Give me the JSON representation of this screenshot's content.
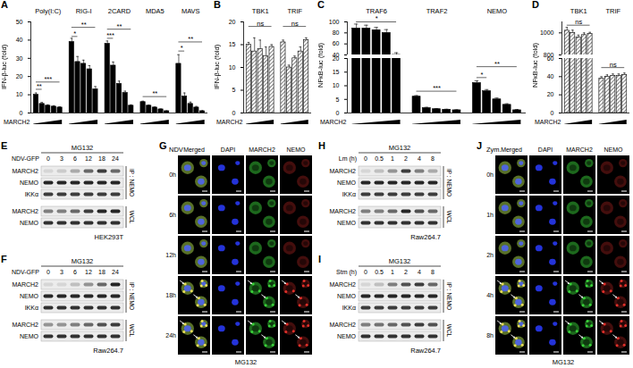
{
  "chart_data": [
    {
      "panel": "A",
      "type": "bar",
      "y_label": "IFN-β-luc (fold)",
      "x_label": "MARCH2",
      "categories": [
        "Poly(I:C)",
        "RIG-I",
        "2CARD",
        "MDA5",
        "MAVS"
      ],
      "values": [
        [
          10,
          5,
          4,
          3.5,
          3
        ],
        [
          39,
          28,
          27,
          24,
          13
        ],
        [
          38,
          26,
          16,
          11,
          4
        ],
        [
          6,
          4,
          3,
          2,
          1
        ],
        [
          27,
          9,
          5,
          3,
          1
        ]
      ],
      "errors": [
        [
          1,
          0.8,
          0.5,
          0.5,
          0.4
        ],
        [
          2,
          3,
          2,
          2,
          1.5
        ],
        [
          1.5,
          2,
          1.5,
          1,
          0.5
        ],
        [
          0.5,
          0.4,
          0.3,
          0.2,
          0.2
        ],
        [
          5,
          2,
          1,
          0.6,
          0.3
        ]
      ],
      "ylim": [
        0,
        50
      ],
      "yticks": [
        0,
        10,
        20,
        30,
        40,
        50
      ],
      "color": "#000000",
      "annotations": [
        {
          "category": "Poly(I:C)",
          "from": 0,
          "to": 1,
          "y": 13,
          "text": "**"
        },
        {
          "category": "Poly(I:C)",
          "from": 0,
          "to": 4,
          "y": 17,
          "text": "***"
        },
        {
          "category": "RIG-I",
          "from": 0,
          "to": 1,
          "y": 42,
          "text": "*"
        },
        {
          "category": "RIG-I",
          "from": 0,
          "to": 4,
          "y": 47,
          "text": "**"
        },
        {
          "category": "2CARD",
          "from": 0,
          "to": 1,
          "y": 41,
          "text": "***"
        },
        {
          "category": "2CARD",
          "from": 0,
          "to": 4,
          "y": 46,
          "text": "**"
        },
        {
          "category": "MDA5",
          "from": 0,
          "to": 4,
          "y": 9,
          "text": "**"
        },
        {
          "category": "MAVS",
          "from": 0,
          "to": 1,
          "y": 34,
          "text": "*"
        },
        {
          "category": "MAVS",
          "from": 0,
          "to": 4,
          "y": 39,
          "text": "**"
        }
      ]
    },
    {
      "panel": "B",
      "type": "bar",
      "y_label": "IFN-β-luc (fold)",
      "x_label": "MARCH2",
      "categories": [
        "TBK1",
        "TRIF"
      ],
      "values": [
        [
          15,
          13.5,
          14,
          12.5,
          14.5
        ],
        [
          15.5,
          10,
          12,
          13.5,
          16
        ]
      ],
      "errors": [
        [
          0.5,
          3,
          2,
          2,
          0.5
        ],
        [
          0.5,
          0.5,
          0.5,
          1,
          0.5
        ]
      ],
      "ylim": [
        0,
        20
      ],
      "yticks": [
        0,
        5,
        10,
        15,
        20
      ],
      "color": "#000000",
      "line_style": "hatched",
      "annotations": [
        {
          "category": "TBK1",
          "from": 0,
          "to": 4,
          "y": 19,
          "text": "ns"
        },
        {
          "category": "TRIF",
          "from": 0,
          "to": 4,
          "y": 19,
          "text": "ns"
        }
      ]
    },
    {
      "panel": "C",
      "type": "bar",
      "y_label": "NFκB-luc (fold)",
      "x_label": "MARCH2",
      "categories": [
        "TRAF6",
        "TRAF2",
        "NEMO"
      ],
      "values": [
        [
          88,
          88,
          85,
          80,
          40
        ],
        [
          6,
          1.8,
          1.4,
          1.2,
          1
        ],
        [
          11,
          8,
          5,
          3,
          1
        ]
      ],
      "errors": [
        [
          8,
          6,
          5,
          6,
          4
        ],
        [
          0.4,
          0.3,
          0.2,
          0.2,
          0.2
        ],
        [
          0.8,
          0.6,
          0.5,
          0.4,
          0.3
        ]
      ],
      "segments": [
        {
          "ylim": [
            0,
            20
          ],
          "yticks": [
            0,
            5,
            10,
            15,
            20
          ]
        },
        {
          "ylim": [
            40,
            100
          ],
          "yticks": [
            40,
            60,
            80,
            100
          ]
        }
      ],
      "color": "#000000",
      "annotations": [
        {
          "category": "TRAF6",
          "from": 0,
          "to": 4,
          "y": 100,
          "text": "*"
        },
        {
          "category": "TRAF2",
          "from": 0,
          "to": 4,
          "y": 8,
          "text": "***"
        },
        {
          "category": "NEMO",
          "from": 0,
          "to": 1,
          "y": 13,
          "text": "*"
        },
        {
          "category": "NEMO",
          "from": 0,
          "to": 4,
          "y": 17,
          "text": "**"
        }
      ]
    },
    {
      "panel": "D",
      "type": "bar",
      "y_label": "NFκB-luc (fold)",
      "x_label": "MARCH2",
      "categories": [
        "TBK1",
        "TRIF"
      ],
      "values": [
        [
          1020,
          1000,
          960,
          980,
          990
        ],
        [
          38,
          40,
          41,
          41,
          42
        ]
      ],
      "errors": [
        [
          30,
          25,
          20,
          20,
          15
        ],
        [
          2,
          2,
          2,
          2,
          2
        ]
      ],
      "segments": [
        {
          "ylim": [
            0,
            60
          ],
          "yticks": [
            0,
            20,
            40,
            60
          ]
        },
        {
          "ylim": [
            800,
            1100
          ],
          "yticks": [
            800,
            1000
          ]
        }
      ],
      "color": "#000000",
      "line_style": "hatched",
      "annotations": [
        {
          "category": "TBK1",
          "from": 0,
          "to": 4,
          "y": 1070,
          "text": "ns"
        },
        {
          "category": "TRIF",
          "from": 0,
          "to": 4,
          "y": 50,
          "text": "ns"
        }
      ]
    }
  ],
  "blots": [
    {
      "panel": "E",
      "drug": "MG132",
      "treatment": "NDV-GFP",
      "lanes": [
        "0",
        "3",
        "6",
        "12",
        "18",
        "24"
      ],
      "blocks": [
        {
          "label": "IP : NEMO",
          "rows": [
            {
              "label": "MARCH2",
              "bands": [
                0.1,
                0.15,
                0.3,
                0.6,
                0.8,
                0.6
              ]
            },
            {
              "label": "NEMO",
              "bands": [
                0.9,
                0.9,
                0.9,
                0.9,
                0.9,
                0.9
              ]
            },
            {
              "label": "IKKα",
              "bands": [
                0.8,
                0.8,
                0.8,
                0.8,
                0.8,
                0.8
              ]
            }
          ]
        },
        {
          "label": "WCL",
          "rows": [
            {
              "label": "MARCH2",
              "bands": [
                0.5,
                0.5,
                0.6,
                0.8,
                0.9,
                0.9
              ]
            },
            {
              "label": "NEMO",
              "bands": [
                0.85,
                0.85,
                0.85,
                0.85,
                0.85,
                0.85
              ]
            }
          ]
        }
      ],
      "cell_line": "HEK293T"
    },
    {
      "panel": "F",
      "drug": "MG132",
      "treatment": "NDV-GFP",
      "lanes": [
        "0",
        "3",
        "6",
        "12",
        "18",
        "24"
      ],
      "blocks": [
        {
          "label": "IP : NEMO",
          "rows": [
            {
              "label": "MARCH2",
              "bands": [
                0.1,
                0.1,
                0.2,
                0.4,
                0.6,
                0.9
              ]
            },
            {
              "label": "NEMO",
              "bands": [
                0.9,
                0.9,
                0.9,
                0.9,
                0.9,
                0.9
              ]
            },
            {
              "label": "IKKα",
              "bands": [
                0.85,
                0.85,
                0.85,
                0.85,
                0.85,
                0.85
              ]
            }
          ]
        },
        {
          "label": "WCL",
          "rows": [
            {
              "label": "MARCH2",
              "bands": [
                0.4,
                0.4,
                0.5,
                0.6,
                0.7,
                0.8
              ]
            },
            {
              "label": "NEMO",
              "bands": [
                0.85,
                0.85,
                0.85,
                0.85,
                0.85,
                0.85
              ]
            }
          ]
        }
      ],
      "cell_line": "Raw264.7"
    },
    {
      "panel": "H",
      "drug": "MG132",
      "treatment": "Lm (h)",
      "lanes": [
        "0",
        "0.5",
        "1",
        "2",
        "4",
        "8"
      ],
      "blocks": [
        {
          "label": "IP : NEMO",
          "rows": [
            {
              "label": "MARCH2",
              "bands": [
                0.1,
                0.2,
                0.4,
                0.8,
                0.5,
                0.3
              ]
            },
            {
              "label": "NEMO",
              "bands": [
                0.9,
                0.9,
                0.9,
                0.9,
                0.9,
                0.9
              ]
            },
            {
              "label": "IKKα",
              "bands": [
                0.8,
                0.8,
                0.8,
                0.8,
                0.8,
                0.8
              ]
            }
          ]
        },
        {
          "label": "WCL",
          "rows": [
            {
              "label": "MARCH2",
              "bands": [
                0.5,
                0.5,
                0.6,
                0.9,
                0.7,
                0.6
              ]
            },
            {
              "label": "NEMO",
              "bands": [
                0.85,
                0.85,
                0.85,
                0.85,
                0.85,
                0.85
              ]
            }
          ]
        }
      ],
      "cell_line": "Raw264.7"
    },
    {
      "panel": "I",
      "drug": "MG132",
      "treatment": "Stm (h)",
      "lanes": [
        "0",
        "0.5",
        "1",
        "2",
        "4",
        "8"
      ],
      "blocks": [
        {
          "label": "IP : NEMO",
          "rows": [
            {
              "label": "MARCH2",
              "bands": [
                0.1,
                0.2,
                0.5,
                0.7,
                0.8,
                0.6
              ]
            },
            {
              "label": "NEMO",
              "bands": [
                0.9,
                0.9,
                0.9,
                0.9,
                0.9,
                0.9
              ]
            },
            {
              "label": "IKKα",
              "bands": [
                0.8,
                0.8,
                0.8,
                0.8,
                0.8,
                0.8
              ]
            }
          ]
        },
        {
          "label": "WCL",
          "rows": [
            {
              "label": "MARCH2",
              "bands": [
                0.5,
                0.55,
                0.6,
                0.7,
                0.8,
                0.7
              ]
            },
            {
              "label": "NEMO",
              "bands": [
                0.85,
                0.85,
                0.85,
                0.85,
                0.85,
                0.85
              ]
            }
          ]
        }
      ],
      "cell_line": "Raw264.7"
    }
  ],
  "micrographs": [
    {
      "panel": "G",
      "treatment": "NDV",
      "drug": "MG132",
      "columns": [
        {
          "label": "Merged"
        },
        {
          "label": "DAPI",
          "color": "#2a3cff"
        },
        {
          "label": "MARCH2",
          "color": "#3ad13a"
        },
        {
          "label": "NEMO",
          "color": "#e0302a"
        }
      ],
      "rows": [
        {
          "label": "0h",
          "arrows": false
        },
        {
          "label": "6h",
          "arrows": false
        },
        {
          "label": "12h",
          "arrows": false
        },
        {
          "label": "18h",
          "arrows": true
        },
        {
          "label": "24h",
          "arrows": true
        }
      ]
    },
    {
      "panel": "J",
      "treatment": "Zym.",
      "drug": "MG132",
      "columns": [
        {
          "label": "Merged"
        },
        {
          "label": "DAPI",
          "color": "#2a3cff"
        },
        {
          "label": "MARCH2",
          "color": "#3ad13a"
        },
        {
          "label": "NEMO",
          "color": "#e0302a"
        }
      ],
      "rows": [
        {
          "label": "0h",
          "arrows": false
        },
        {
          "label": "1h",
          "arrows": false
        },
        {
          "label": "2h",
          "arrows": false
        },
        {
          "label": "4h",
          "arrows": true
        },
        {
          "label": "8h",
          "arrows": true
        }
      ]
    }
  ]
}
